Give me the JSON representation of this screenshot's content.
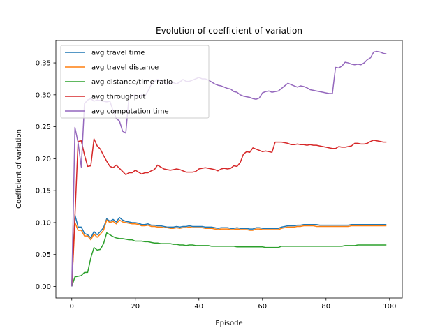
{
  "chart_data": {
    "type": "line",
    "title": "Evolution of coefficient of variation",
    "xlabel": "Episode",
    "ylabel": "Coefficient of variation",
    "xlim": [
      -5,
      104
    ],
    "ylim": [
      -0.018,
      0.385
    ],
    "xticks": [
      0,
      20,
      40,
      60,
      80,
      100
    ],
    "yticks": [
      0.0,
      0.05,
      0.1,
      0.15,
      0.2,
      0.25,
      0.3,
      0.35
    ],
    "ytick_labels": [
      "0.00",
      "0.05",
      "0.10",
      "0.15",
      "0.20",
      "0.25",
      "0.30",
      "0.35"
    ],
    "grid": false,
    "legend_position": "upper-left",
    "x": [
      0,
      1,
      2,
      3,
      4,
      5,
      6,
      7,
      8,
      9,
      10,
      11,
      12,
      13,
      14,
      15,
      16,
      17,
      18,
      19,
      20,
      21,
      22,
      23,
      24,
      25,
      26,
      27,
      28,
      29,
      30,
      31,
      32,
      33,
      34,
      35,
      36,
      37,
      38,
      39,
      40,
      41,
      42,
      43,
      44,
      45,
      46,
      47,
      48,
      49,
      50,
      51,
      52,
      53,
      54,
      55,
      56,
      57,
      58,
      59,
      60,
      61,
      62,
      63,
      64,
      65,
      66,
      67,
      68,
      69,
      70,
      71,
      72,
      73,
      74,
      75,
      76,
      77,
      78,
      79,
      80,
      81,
      82,
      83,
      84,
      85,
      86,
      87,
      88,
      89,
      90,
      91,
      92,
      93,
      94,
      95,
      96,
      97,
      98,
      99
    ],
    "series": [
      {
        "name": "avg travel time",
        "color": "#1f77b4",
        "values": [
          0.0,
          0.112,
          0.093,
          0.093,
          0.083,
          0.081,
          0.076,
          0.086,
          0.081,
          0.086,
          0.092,
          0.106,
          0.102,
          0.105,
          0.101,
          0.108,
          0.104,
          0.102,
          0.101,
          0.1,
          0.1,
          0.099,
          0.097,
          0.097,
          0.098,
          0.096,
          0.096,
          0.095,
          0.095,
          0.094,
          0.093,
          0.093,
          0.093,
          0.094,
          0.093,
          0.094,
          0.094,
          0.095,
          0.094,
          0.094,
          0.094,
          0.094,
          0.093,
          0.093,
          0.093,
          0.092,
          0.091,
          0.092,
          0.092,
          0.092,
          0.091,
          0.091,
          0.092,
          0.091,
          0.091,
          0.091,
          0.09,
          0.09,
          0.092,
          0.092,
          0.091,
          0.091,
          0.091,
          0.091,
          0.091,
          0.091,
          0.093,
          0.094,
          0.095,
          0.095,
          0.095,
          0.096,
          0.096,
          0.097,
          0.097,
          0.097,
          0.097,
          0.097,
          0.096,
          0.096,
          0.096,
          0.096,
          0.096,
          0.096,
          0.096,
          0.096,
          0.096,
          0.096,
          0.097,
          0.097,
          0.097,
          0.097,
          0.097,
          0.097,
          0.097,
          0.097,
          0.097,
          0.097,
          0.097,
          0.097
        ]
      },
      {
        "name": "avg travel distance",
        "color": "#ff7f0e",
        "values": [
          0.0,
          0.1,
          0.088,
          0.088,
          0.079,
          0.079,
          0.073,
          0.082,
          0.077,
          0.082,
          0.088,
          0.104,
          0.1,
          0.102,
          0.098,
          0.104,
          0.101,
          0.1,
          0.099,
          0.098,
          0.098,
          0.097,
          0.095,
          0.095,
          0.096,
          0.094,
          0.094,
          0.093,
          0.093,
          0.092,
          0.092,
          0.091,
          0.091,
          0.092,
          0.091,
          0.092,
          0.092,
          0.093,
          0.092,
          0.092,
          0.092,
          0.092,
          0.091,
          0.091,
          0.091,
          0.09,
          0.089,
          0.09,
          0.09,
          0.09,
          0.089,
          0.089,
          0.09,
          0.089,
          0.089,
          0.089,
          0.088,
          0.088,
          0.09,
          0.09,
          0.089,
          0.089,
          0.089,
          0.089,
          0.089,
          0.089,
          0.091,
          0.092,
          0.093,
          0.093,
          0.093,
          0.094,
          0.094,
          0.095,
          0.095,
          0.095,
          0.095,
          0.094,
          0.094,
          0.094,
          0.094,
          0.094,
          0.094,
          0.094,
          0.094,
          0.094,
          0.094,
          0.094,
          0.095,
          0.095,
          0.095,
          0.095,
          0.095,
          0.095,
          0.095,
          0.095,
          0.095,
          0.095,
          0.095,
          0.095
        ]
      },
      {
        "name": "avg distance/time ratio",
        "color": "#2ca02c",
        "values": [
          0.0,
          0.015,
          0.016,
          0.017,
          0.022,
          0.022,
          0.045,
          0.061,
          0.057,
          0.058,
          0.067,
          0.084,
          0.081,
          0.078,
          0.076,
          0.075,
          0.075,
          0.074,
          0.073,
          0.073,
          0.071,
          0.071,
          0.071,
          0.07,
          0.07,
          0.069,
          0.068,
          0.068,
          0.067,
          0.067,
          0.067,
          0.067,
          0.066,
          0.066,
          0.065,
          0.065,
          0.064,
          0.065,
          0.065,
          0.064,
          0.064,
          0.064,
          0.064,
          0.064,
          0.063,
          0.063,
          0.063,
          0.063,
          0.063,
          0.063,
          0.063,
          0.063,
          0.062,
          0.062,
          0.062,
          0.062,
          0.062,
          0.062,
          0.062,
          0.062,
          0.062,
          0.061,
          0.061,
          0.061,
          0.061,
          0.061,
          0.063,
          0.063,
          0.063,
          0.063,
          0.063,
          0.063,
          0.063,
          0.063,
          0.063,
          0.063,
          0.063,
          0.063,
          0.063,
          0.063,
          0.063,
          0.063,
          0.063,
          0.063,
          0.063,
          0.063,
          0.064,
          0.064,
          0.064,
          0.064,
          0.065,
          0.065,
          0.065,
          0.065,
          0.065,
          0.065,
          0.065,
          0.065,
          0.065,
          0.065
        ]
      },
      {
        "name": "avg throughput",
        "color": "#d62728",
        "values": [
          0.0,
          0.11,
          0.227,
          0.228,
          0.206,
          0.188,
          0.189,
          0.231,
          0.22,
          0.215,
          0.205,
          0.196,
          0.188,
          0.186,
          0.19,
          0.185,
          0.18,
          0.175,
          0.178,
          0.178,
          0.182,
          0.179,
          0.176,
          0.178,
          0.178,
          0.181,
          0.183,
          0.19,
          0.187,
          0.184,
          0.183,
          0.182,
          0.183,
          0.184,
          0.183,
          0.181,
          0.179,
          0.179,
          0.179,
          0.18,
          0.184,
          0.185,
          0.186,
          0.185,
          0.184,
          0.183,
          0.181,
          0.184,
          0.185,
          0.184,
          0.185,
          0.189,
          0.188,
          0.194,
          0.207,
          0.211,
          0.21,
          0.217,
          0.215,
          0.213,
          0.211,
          0.212,
          0.211,
          0.21,
          0.226,
          0.226,
          0.226,
          0.225,
          0.224,
          0.222,
          0.222,
          0.223,
          0.222,
          0.222,
          0.221,
          0.222,
          0.221,
          0.221,
          0.22,
          0.219,
          0.218,
          0.217,
          0.216,
          0.216,
          0.219,
          0.218,
          0.218,
          0.219,
          0.22,
          0.224,
          0.224,
          0.223,
          0.223,
          0.224,
          0.227,
          0.229,
          0.228,
          0.227,
          0.226,
          0.226
        ]
      },
      {
        "name": "avg computation time",
        "color": "#9467bd",
        "values": [
          0.0,
          0.249,
          0.225,
          0.187,
          0.286,
          0.292,
          0.294,
          0.29,
          0.292,
          0.291,
          0.29,
          0.289,
          0.29,
          0.275,
          0.263,
          0.259,
          0.243,
          0.24,
          0.297,
          0.298,
          0.3,
          0.297,
          0.3,
          0.298,
          0.306,
          0.316,
          0.321,
          0.324,
          0.322,
          0.32,
          0.316,
          0.318,
          0.319,
          0.317,
          0.32,
          0.324,
          0.321,
          0.321,
          0.323,
          0.325,
          0.327,
          0.325,
          0.325,
          0.323,
          0.32,
          0.317,
          0.315,
          0.314,
          0.312,
          0.31,
          0.309,
          0.305,
          0.304,
          0.3,
          0.298,
          0.297,
          0.296,
          0.294,
          0.293,
          0.295,
          0.303,
          0.305,
          0.306,
          0.304,
          0.305,
          0.306,
          0.31,
          0.314,
          0.318,
          0.316,
          0.314,
          0.312,
          0.314,
          0.313,
          0.311,
          0.308,
          0.307,
          0.306,
          0.305,
          0.304,
          0.303,
          0.302,
          0.302,
          0.343,
          0.342,
          0.345,
          0.351,
          0.35,
          0.348,
          0.347,
          0.348,
          0.347,
          0.35,
          0.355,
          0.358,
          0.367,
          0.368,
          0.367,
          0.365,
          0.364
        ]
      }
    ]
  }
}
